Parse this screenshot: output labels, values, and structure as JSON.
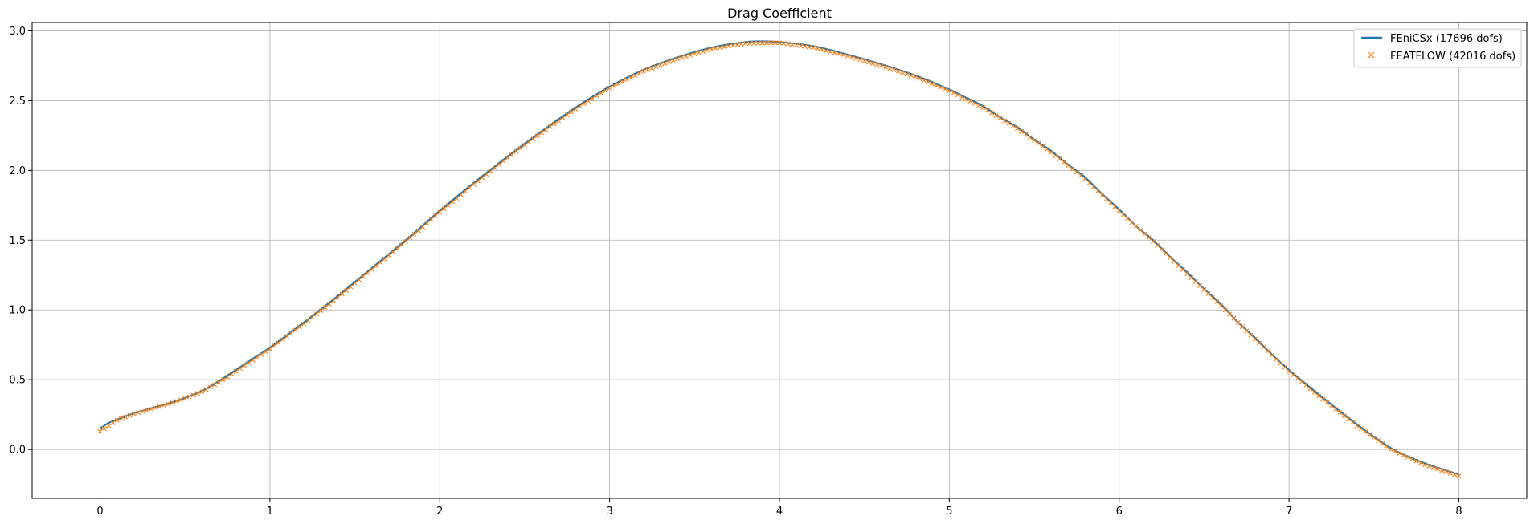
{
  "chart_data": {
    "type": "line",
    "title": "Drag Coefficient",
    "xlabel": "",
    "ylabel": "",
    "xlim": [
      -0.4,
      8.4
    ],
    "ylim": [
      -0.35,
      3.06
    ],
    "xticks": [
      0,
      1,
      2,
      3,
      4,
      5,
      6,
      7,
      8
    ],
    "yticks": [
      0.0,
      0.5,
      1.0,
      1.5,
      2.0,
      2.5,
      3.0
    ],
    "xtick_labels": [
      "0",
      "1",
      "2",
      "3",
      "4",
      "5",
      "6",
      "7",
      "8"
    ],
    "ytick_labels": [
      "0.0",
      "0.5",
      "1.0",
      "1.5",
      "2.0",
      "2.5",
      "3.0"
    ],
    "grid": true,
    "legend_position": "top-right",
    "series": [
      {
        "name": "FEniCSx (17696 dofs)",
        "style": "line",
        "color": "#1f77b4",
        "x": [
          0.0,
          0.05,
          0.1,
          0.2,
          0.3,
          0.4,
          0.5,
          0.6,
          0.7,
          0.8,
          0.9,
          1.0,
          1.2,
          1.4,
          1.6,
          1.8,
          2.0,
          2.2,
          2.4,
          2.6,
          2.8,
          3.0,
          3.2,
          3.4,
          3.6,
          3.8,
          3.9,
          4.0,
          4.2,
          4.4,
          4.6,
          4.8,
          5.0,
          5.1,
          5.2,
          5.3,
          5.4,
          5.5,
          5.6,
          5.7,
          5.8,
          5.9,
          6.0,
          6.1,
          6.2,
          6.3,
          6.4,
          6.5,
          6.6,
          6.7,
          6.8,
          6.9,
          7.0,
          7.2,
          7.4,
          7.6,
          7.8,
          8.0
        ],
        "y": [
          0.15,
          0.19,
          0.215,
          0.26,
          0.295,
          0.33,
          0.37,
          0.42,
          0.49,
          0.57,
          0.65,
          0.73,
          0.91,
          1.1,
          1.3,
          1.5,
          1.71,
          1.91,
          2.1,
          2.28,
          2.45,
          2.6,
          2.72,
          2.81,
          2.88,
          2.92,
          2.925,
          2.92,
          2.89,
          2.83,
          2.76,
          2.68,
          2.58,
          2.52,
          2.46,
          2.38,
          2.31,
          2.22,
          2.14,
          2.04,
          1.95,
          1.83,
          1.72,
          1.6,
          1.5,
          1.38,
          1.27,
          1.15,
          1.04,
          0.91,
          0.8,
          0.68,
          0.57,
          0.37,
          0.18,
          0.01,
          -0.1,
          -0.18
        ]
      },
      {
        "name": "FEATFLOW (42016 dofs)",
        "style": "markers",
        "marker": "x",
        "color": "#ff7f0e",
        "x": [
          0.0,
          0.1,
          0.2,
          0.3,
          0.4,
          0.5,
          0.6,
          0.7,
          0.8,
          0.9,
          1.0,
          1.2,
          1.4,
          1.6,
          1.8,
          2.0,
          2.2,
          2.4,
          2.6,
          2.8,
          3.0,
          3.2,
          3.4,
          3.6,
          3.8,
          4.0,
          4.2,
          4.4,
          4.6,
          4.8,
          5.0,
          5.2,
          5.4,
          5.6,
          5.8,
          6.0,
          6.2,
          6.4,
          6.6,
          6.8,
          7.0,
          7.2,
          7.4,
          7.6,
          7.8,
          8.0
        ],
        "y": [
          0.13,
          0.21,
          0.255,
          0.29,
          0.325,
          0.365,
          0.415,
          0.48,
          0.56,
          0.64,
          0.72,
          0.9,
          1.09,
          1.29,
          1.49,
          1.7,
          1.9,
          2.09,
          2.27,
          2.44,
          2.59,
          2.71,
          2.8,
          2.87,
          2.91,
          2.915,
          2.88,
          2.82,
          2.75,
          2.67,
          2.57,
          2.45,
          2.3,
          2.13,
          1.94,
          1.71,
          1.49,
          1.26,
          1.03,
          0.79,
          0.56,
          0.36,
          0.17,
          0.0,
          -0.11,
          -0.19
        ]
      }
    ]
  }
}
